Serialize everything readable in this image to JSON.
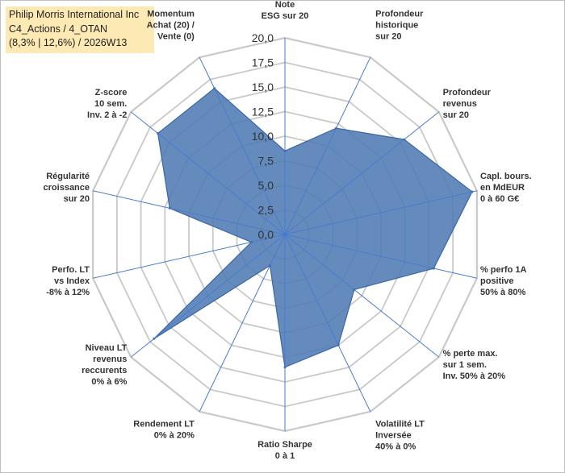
{
  "title_box": {
    "line1": "Philip Morris International Inc",
    "line2": "C4_Actions / 4_OTAN",
    "line3": "(8,3% | 12,6%) / 2026W13"
  },
  "colors": {
    "fill": "#4f7bb3",
    "stroke": "#3a66a8",
    "grid": "#c9c9c9",
    "spoke": "#4a7bd0",
    "title_bg": "#fde9b3"
  },
  "chart_data": {
    "type": "radar",
    "rmin": 0,
    "rmax": 20,
    "ticks": [
      "0,0",
      "2,5",
      "5,0",
      "7,5",
      "10,0",
      "12,5",
      "15,0",
      "17,5",
      "20,0"
    ],
    "axes": [
      {
        "lines": [
          "Note",
          "ESG sur 20"
        ],
        "value": 8.5
      },
      {
        "lines": [
          "Profondeur",
          "historique",
          "sur 20"
        ],
        "value": 12.0
      },
      {
        "lines": [
          "Profondeur",
          "revenus",
          "sur 20"
        ],
        "value": 15.5
      },
      {
        "lines": [
          "Capl. bours.",
          "en MdEUR",
          "0 à 60 G€"
        ],
        "value": 19.5
      },
      {
        "lines": [
          "% perfo 1A",
          "positive",
          "50% à 80%"
        ],
        "value": 15.5
      },
      {
        "lines": [
          "% perte max.",
          "sur 1 sem.",
          "Inv. 50% à 20%"
        ],
        "value": 9.0
      },
      {
        "lines": [
          "Volatilité LT",
          "Inversée",
          "40% à 0%"
        ],
        "value": 12.5
      },
      {
        "lines": [
          "Ratio Sharpe",
          "0 à 1"
        ],
        "value": 13.5
      },
      {
        "lines": [
          "Rendement LT",
          "0% à 20%"
        ],
        "value": 3.5
      },
      {
        "lines": [
          "Niveau LT",
          "revenus",
          "reccurents",
          "0% à 6%"
        ],
        "value": 17.0
      },
      {
        "lines": [
          "Perfo. LT",
          "vs Index",
          "-8% à 12%"
        ],
        "value": 3.5
      },
      {
        "lines": [
          "Régularité",
          "croissance",
          "sur 20"
        ],
        "value": 12.0
      },
      {
        "lines": [
          "Z-score",
          "10 sem.",
          "Inv. 2 à -2"
        ],
        "value": 16.5
      },
      {
        "lines": [
          "Momentum",
          "Achat (20) /",
          "Vente (0)"
        ],
        "value": 16.5
      }
    ]
  }
}
